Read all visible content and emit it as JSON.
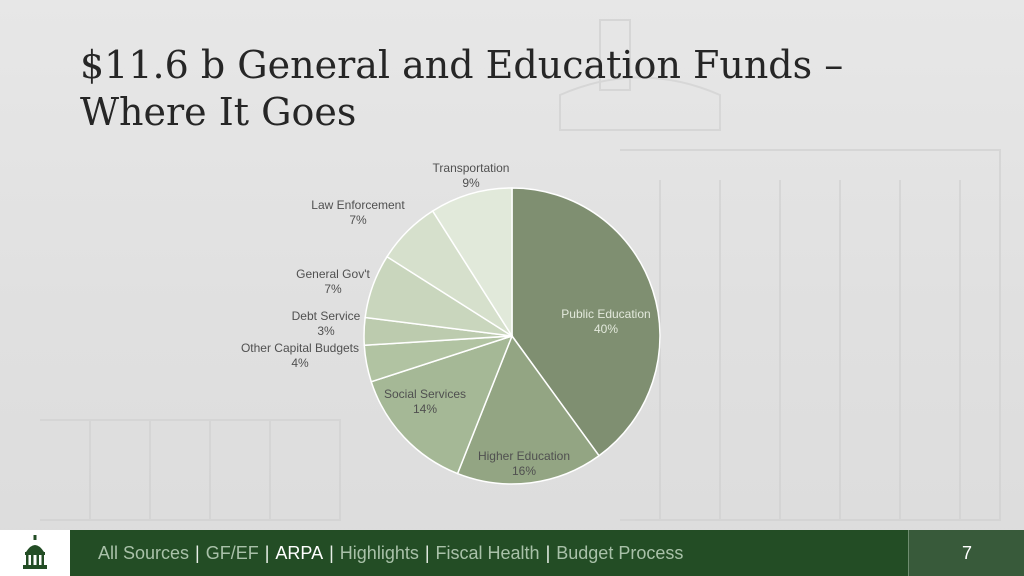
{
  "slide": {
    "title_line1": "$11.6 b General and Education Funds –",
    "title_line2": "Where It Goes",
    "page_number": "7"
  },
  "footer": {
    "nav": [
      {
        "label": "All Sources",
        "active": false
      },
      {
        "label": "GF/EF",
        "active": false
      },
      {
        "label": "ARPA",
        "active": true
      },
      {
        "label": "Highlights",
        "active": false
      },
      {
        "label": "Fiscal Health",
        "active": false
      },
      {
        "label": "Budget Process",
        "active": false
      }
    ],
    "separator": "|",
    "logo_icon": "capitol-dome-icon",
    "colors": {
      "bar": "#234d25",
      "nav_text": "#a9c1a9",
      "active_text": "#ffffff"
    }
  },
  "chart_data": {
    "type": "pie",
    "title": "",
    "start_angle": "12 o'clock",
    "direction": "clockwise",
    "slices": [
      {
        "label": "Public Education",
        "value": 40,
        "value_label": "40%",
        "color": "#7f8f71"
      },
      {
        "label": "Higher Education",
        "value": 16,
        "value_label": "16%",
        "color": "#93a583"
      },
      {
        "label": "Social Services",
        "value": 14,
        "value_label": "14%",
        "color": "#a5b896"
      },
      {
        "label": "Other Capital Budgets",
        "value": 4,
        "value_label": "4%",
        "color": "#b1c3a2"
      },
      {
        "label": "Debt Service",
        "value": 3,
        "value_label": "3%",
        "color": "#bccbae"
      },
      {
        "label": "General Gov't",
        "value": 7,
        "value_label": "7%",
        "color": "#c9d6bd"
      },
      {
        "label": "Law Enforcement",
        "value": 7,
        "value_label": "7%",
        "color": "#d6e0cc"
      },
      {
        "label": "Transportation",
        "value": 9,
        "value_label": "9%",
        "color": "#e1e9da"
      }
    ]
  }
}
